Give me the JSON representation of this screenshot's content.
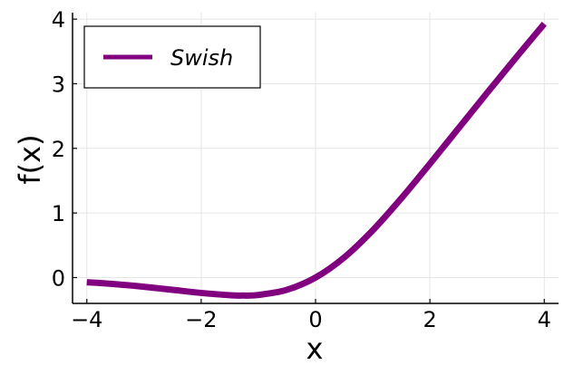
{
  "chart_data": {
    "type": "line",
    "xlabel": "x",
    "ylabel": "f(x)",
    "xlim": [
      -4.25,
      4.25
    ],
    "ylim": [
      -0.4,
      4.1
    ],
    "xticks": [
      -4,
      -2,
      0,
      2,
      4
    ],
    "yticks": [
      0,
      1,
      2,
      3,
      4
    ],
    "xtick_labels": [
      "−4",
      "−2",
      "0",
      "2",
      "4"
    ],
    "ytick_labels": [
      "0",
      "1",
      "2",
      "3",
      "4"
    ],
    "grid": true,
    "legend_position": "top-left",
    "series": [
      {
        "name": "Swish",
        "color": "#800080",
        "x": [
          -4.0,
          -3.5,
          -3.0,
          -2.5,
          -2.0,
          -1.5,
          -1.28,
          -1.0,
          -0.5,
          0.0,
          0.5,
          1.0,
          1.5,
          2.0,
          2.5,
          3.0,
          3.5,
          4.0
        ],
        "y": [
          -0.072,
          -0.102,
          -0.142,
          -0.19,
          -0.238,
          -0.273,
          -0.278,
          -0.269,
          -0.189,
          0.0,
          0.311,
          0.731,
          1.227,
          1.762,
          2.31,
          2.858,
          3.398,
          3.928
        ]
      }
    ]
  }
}
